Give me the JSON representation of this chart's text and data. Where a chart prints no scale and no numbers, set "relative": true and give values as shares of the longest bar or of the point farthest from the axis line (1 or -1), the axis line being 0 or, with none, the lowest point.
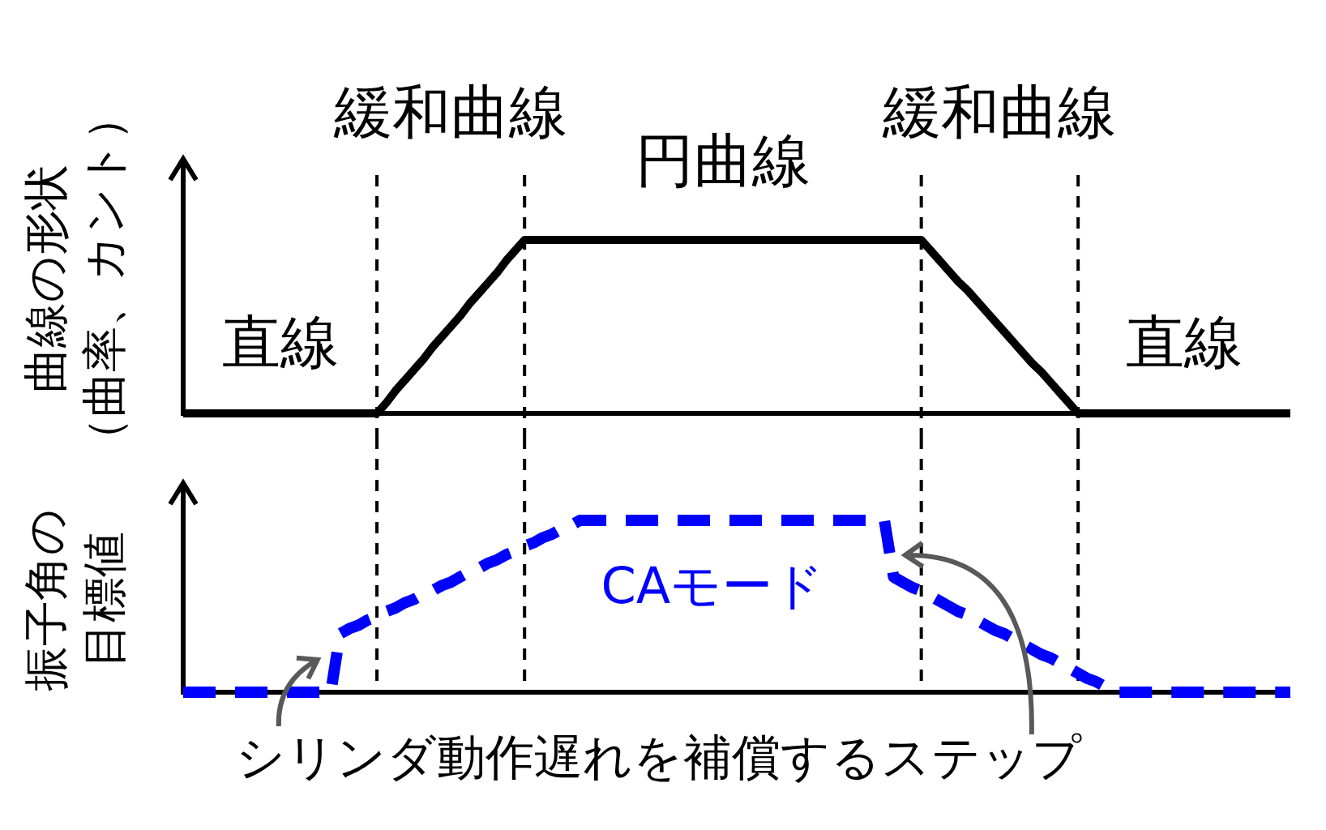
{
  "chart_data": [
    {
      "type": "line",
      "ylabel": "曲線の形状（曲率、カント）",
      "relative": true,
      "line_style": "solid",
      "grid": "x",
      "categories": [
        null,
        null,
        null,
        null,
        null,
        null,
        null,
        null,
        null,
        null,
        null,
        null,
        null,
        null,
        null,
        null,
        null,
        null,
        null,
        null,
        null,
        null,
        null,
        null,
        null,
        null,
        null,
        null,
        null,
        null,
        null,
        null,
        null,
        null,
        null,
        null,
        null,
        null,
        null,
        null,
        null,
        null,
        null,
        null,
        null,
        null,
        null,
        null,
        null,
        null,
        null,
        null,
        null,
        null,
        null,
        null,
        null,
        null,
        null,
        null,
        null,
        null,
        null,
        null,
        null,
        null,
        null,
        null,
        null,
        null,
        null,
        null,
        null,
        null,
        null,
        null,
        null,
        null,
        null,
        null,
        null,
        null,
        null,
        null,
        null,
        null,
        null,
        null,
        null,
        null,
        null,
        null,
        null,
        null,
        null,
        null,
        null,
        null,
        null,
        null,
        null,
        null,
        null,
        null,
        null,
        null,
        null,
        null,
        null,
        null,
        null,
        null,
        null,
        null,
        null,
        null,
        null,
        null,
        null,
        null,
        null
      ],
      "series": [
        {
          "color": "#000000",
          "values": [
            0,
            0,
            0,
            0,
            0,
            0,
            0,
            0,
            0,
            0,
            0,
            0,
            0,
            0,
            0,
            0,
            0,
            0,
            0,
            0,
            0,
            0,
            0.06,
            0.13,
            0.19,
            0.25,
            0.31,
            0.38,
            0.44,
            0.5,
            0.56,
            0.63,
            0.69,
            0.75,
            0.81,
            0.88,
            0.94,
            1,
            1,
            1,
            1,
            1,
            1,
            1,
            1,
            1,
            1,
            1,
            1,
            1,
            1,
            1,
            1,
            1,
            1,
            1,
            1,
            1,
            1,
            1,
            1,
            1,
            1,
            1,
            1,
            1,
            1,
            1,
            1,
            1,
            1,
            1,
            1,
            1,
            1,
            1,
            1,
            1,
            1,
            1,
            1,
            0.94,
            0.88,
            0.82,
            0.76,
            0.71,
            0.65,
            0.59,
            0.53,
            0.47,
            0.41,
            0.35,
            0.29,
            0.24,
            0.18,
            0.12,
            0.06,
            0,
            0,
            0,
            0,
            0,
            0,
            0,
            0,
            0,
            0,
            0,
            0,
            0,
            0,
            0,
            0,
            0,
            0,
            0,
            0,
            0,
            0,
            0,
            0
          ]
        }
      ],
      "annotations": [
        "直線",
        "緩和曲線",
        "円曲線",
        "緩和曲線",
        "直線"
      ]
    },
    {
      "type": "line",
      "ylabel": "振子角の目標値",
      "relative": true,
      "line_style": "dashed",
      "grid": "x",
      "categories": [
        null,
        null,
        null,
        null,
        null,
        null,
        null,
        null,
        null,
        null,
        null,
        null,
        null,
        null,
        null,
        null,
        null,
        null,
        null,
        null,
        null,
        null,
        null,
        null,
        null,
        null,
        null,
        null,
        null,
        null,
        null,
        null,
        null,
        null,
        null,
        null,
        null,
        null,
        null,
        null,
        null,
        null,
        null,
        null,
        null,
        null,
        null,
        null,
        null,
        null,
        null,
        null,
        null,
        null,
        null,
        null,
        null,
        null,
        null,
        null,
        null,
        null,
        null,
        null,
        null,
        null,
        null,
        null,
        null,
        null,
        null,
        null,
        null,
        null,
        null,
        null,
        null,
        null,
        null,
        null,
        null,
        null,
        null,
        null,
        null,
        null,
        null,
        null,
        null,
        null,
        null,
        null,
        null,
        null,
        null,
        null,
        null,
        null,
        null,
        null,
        null,
        null,
        null,
        null,
        null,
        null,
        null,
        null,
        null,
        null,
        null,
        null,
        null,
        null,
        null,
        null,
        null,
        null,
        null,
        null,
        null
      ],
      "series": [
        {
          "name": "CAモード",
          "color": "#0000ff",
          "values": [
            0,
            0,
            0,
            0,
            0,
            0,
            0,
            0,
            0,
            0,
            0,
            0,
            0,
            0,
            0,
            0,
            0,
            0.34,
            0.37,
            0.39,
            0.42,
            0.44,
            0.47,
            0.49,
            0.52,
            0.54,
            0.57,
            0.59,
            0.62,
            0.64,
            0.67,
            0.7,
            0.72,
            0.75,
            0.77,
            0.8,
            0.82,
            0.85,
            0.87,
            0.9,
            0.92,
            0.95,
            0.97,
            1,
            1,
            1,
            1,
            1,
            1,
            1,
            1,
            1,
            1,
            1,
            1,
            1,
            1,
            1,
            1,
            1,
            1,
            1,
            1,
            1,
            1,
            1,
            1,
            1,
            1,
            1,
            1,
            1,
            1,
            1,
            1,
            1,
            1,
            0.67,
            0.64,
            0.61,
            0.59,
            0.56,
            0.53,
            0.5,
            0.47,
            0.45,
            0.42,
            0.39,
            0.36,
            0.34,
            0.31,
            0.28,
            0.25,
            0.22,
            0.2,
            0.17,
            0.14,
            0.11,
            0.08,
            0.06,
            0.03,
            0,
            0,
            0,
            0,
            0,
            0,
            0,
            0,
            0,
            0,
            0,
            0,
            0,
            0,
            0,
            0,
            0,
            0,
            0,
            0
          ]
        }
      ],
      "annotations": [
        "シリンダ動作遅れを補償するステップ"
      ]
    }
  ]
}
